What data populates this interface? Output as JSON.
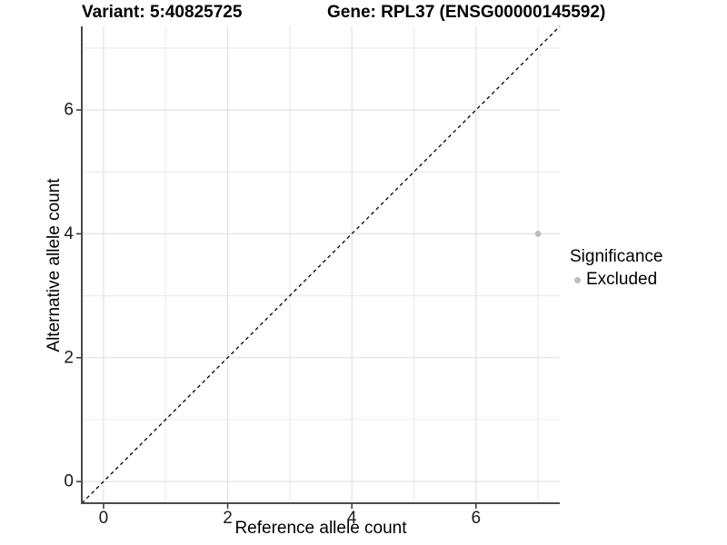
{
  "chart_data": {
    "type": "scatter",
    "titles": {
      "left": "Variant: 5:40825725",
      "right": "Gene: RPL37 (ENSG00000145592)"
    },
    "xlabel": "Reference allele count",
    "ylabel": "Alternative allele count",
    "xlim": [
      -0.35,
      7.35
    ],
    "ylim": [
      -0.35,
      7.35
    ],
    "x_ticks": [
      0,
      2,
      4,
      6
    ],
    "y_ticks": [
      0,
      2,
      4,
      6
    ],
    "x_minor_ticks": [
      1,
      3,
      5,
      7
    ],
    "y_minor_ticks": [
      1,
      3,
      5,
      7
    ],
    "grid": "major+minor",
    "reference_line": {
      "slope": 1,
      "intercept": 0,
      "style": "dashed",
      "color": "#000000"
    },
    "series": [
      {
        "name": "Excluded",
        "color": "#bdbdbd",
        "points": [
          {
            "x": 7,
            "y": 4
          }
        ]
      }
    ],
    "legend": {
      "title": "Significance",
      "position": "right",
      "items": [
        {
          "label": "Excluded",
          "color": "#bdbdbd"
        }
      ]
    },
    "colors": {
      "axis_line": "#4a4a4a",
      "tick": "#333333",
      "tick_label": "#1a1a1a",
      "grid_major": "#e4e4e4",
      "grid_minor": "#ececec",
      "background": "#ffffff"
    }
  }
}
